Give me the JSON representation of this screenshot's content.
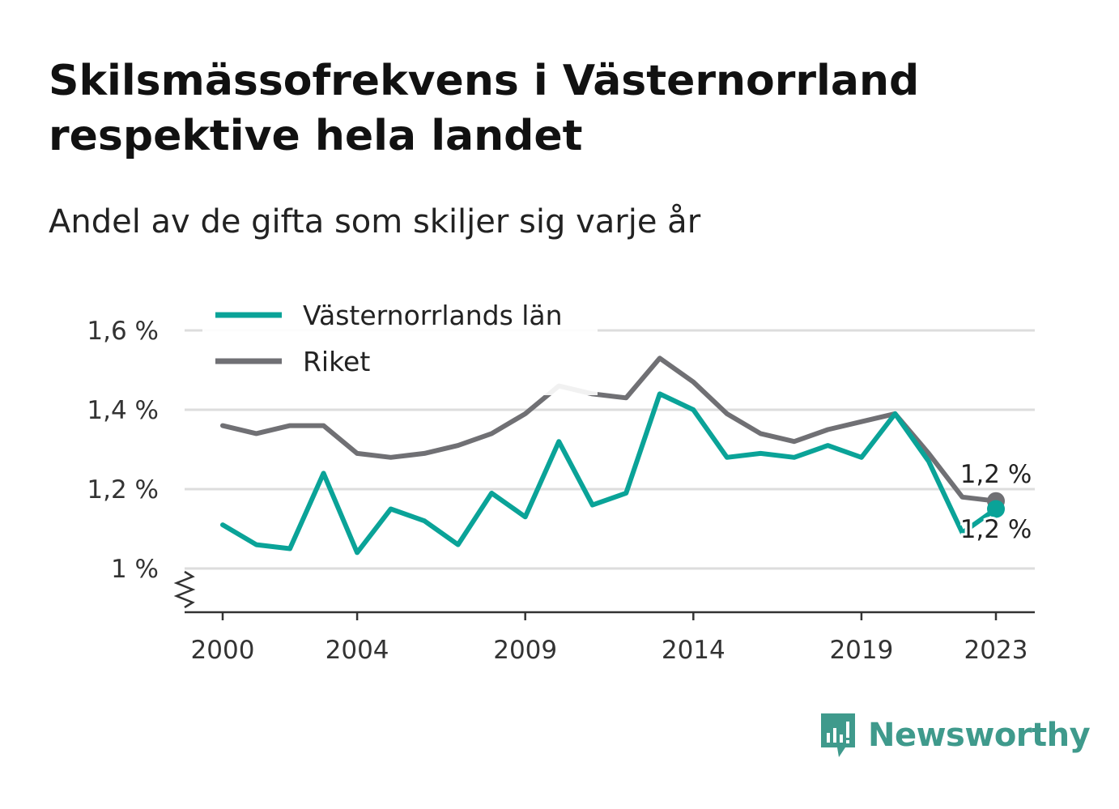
{
  "title": "Skilsmässofrekvens i Västernorrland respektive hela landet",
  "subtitle": "Andel av de gifta som skiljer sig varje år",
  "brand": {
    "name": "Newsworthy",
    "icon": "bar-chart-speech-bubble-icon",
    "color": "#3f9a8c"
  },
  "chart_data": {
    "type": "line",
    "x": [
      2000,
      2001,
      2002,
      2003,
      2004,
      2005,
      2006,
      2007,
      2008,
      2009,
      2010,
      2011,
      2012,
      2013,
      2014,
      2015,
      2016,
      2017,
      2018,
      2019,
      2020,
      2021,
      2022,
      2023
    ],
    "x_ticks": [
      "2000",
      "2004",
      "2009",
      "2014",
      "2019",
      "2023"
    ],
    "y_ticks": [
      "1 %",
      "1,2 %",
      "1,4 %",
      "1,6 %"
    ],
    "ylim": [
      0.89,
      1.6
    ],
    "grid": true,
    "legend_position": "top-left",
    "series": [
      {
        "name": "Västernorrlands län",
        "color": "#0aa398",
        "values": [
          1.11,
          1.06,
          1.05,
          1.24,
          1.04,
          1.15,
          1.12,
          1.06,
          1.19,
          1.13,
          1.32,
          1.16,
          1.19,
          1.44,
          1.4,
          1.28,
          1.29,
          1.28,
          1.31,
          1.28,
          1.39,
          1.27,
          1.09,
          1.15
        ],
        "end_label": "1,2 %"
      },
      {
        "name": "Riket",
        "color": "#707074",
        "values": [
          1.36,
          1.34,
          1.36,
          1.36,
          1.29,
          1.28,
          1.29,
          1.31,
          1.34,
          1.39,
          1.46,
          1.44,
          1.43,
          1.53,
          1.47,
          1.39,
          1.34,
          1.32,
          1.35,
          1.37,
          1.39,
          1.29,
          1.18,
          1.17
        ],
        "end_label": "1,2 %"
      }
    ]
  }
}
